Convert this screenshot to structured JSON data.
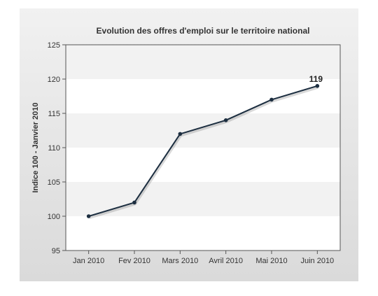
{
  "chart_data": {
    "type": "line",
    "title": "Evolution des offres d'emploi sur le territoire national",
    "xlabel": "",
    "ylabel": "Indice 100 - Janvier 2010",
    "categories": [
      "Jan 2010",
      "Fev 2010",
      "Mars 2010",
      "Avril 2010",
      "Mai 2010",
      "Juin 2010"
    ],
    "series": [
      {
        "values": [
          100,
          102,
          112,
          114,
          117,
          119
        ]
      }
    ],
    "ylim": [
      95,
      125
    ],
    "yticks": [
      95,
      100,
      105,
      110,
      115,
      120,
      125
    ],
    "grid": "alternating horizontal bands",
    "legend": "none",
    "annotations": [
      {
        "category": "Juin 2010",
        "text": "119"
      }
    ],
    "colors": {
      "line": "#1c2e40",
      "band": "#f2f2f2",
      "plot_background": "#ffffff",
      "axis": "#555555"
    }
  }
}
